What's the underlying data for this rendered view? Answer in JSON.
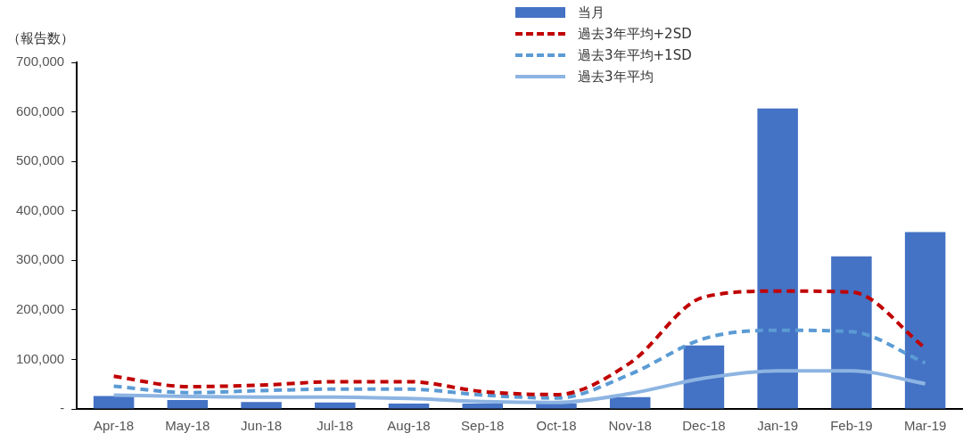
{
  "chart_data": {
    "type": "bar",
    "ylabel": "（報告数）",
    "categories": [
      "Apr-18",
      "May-18",
      "Jun-18",
      "Jul-18",
      "Aug-18",
      "Sep-18",
      "Oct-18",
      "Nov-18",
      "Dec-18",
      "Jan-19",
      "Feb-19",
      "Mar-19"
    ],
    "series": [
      {
        "name": "当月",
        "color": "#4472c4",
        "values": [
          26000,
          18000,
          14000,
          13000,
          11000,
          11000,
          11000,
          24000,
          128000,
          607000,
          308000,
          357000
        ]
      },
      {
        "name": "過去3年平均+2SD",
        "type": "line",
        "line_style": "dashed",
        "color": "#c00000",
        "values": [
          66000,
          45000,
          48000,
          55000,
          55000,
          35000,
          29000,
          93000,
          226000,
          238000,
          236000,
          123000
        ]
      },
      {
        "name": "過去3年平均+1SD",
        "type": "line",
        "line_style": "dashed",
        "color": "#5b9bd5",
        "values": [
          46000,
          33000,
          37000,
          40000,
          40000,
          28000,
          22000,
          70000,
          142000,
          159000,
          156000,
          93000
        ]
      },
      {
        "name": "過去3年平均",
        "type": "line",
        "line_style": "solid",
        "color": "#8db4e2",
        "values": [
          28000,
          25000,
          24000,
          24000,
          21000,
          15000,
          13000,
          31000,
          62000,
          77000,
          77000,
          51000
        ]
      }
    ],
    "ylim": [
      0,
      700000
    ],
    "yticks": [
      {
        "value": 0,
        "label": "-"
      },
      {
        "value": 100000,
        "label": "100,000"
      },
      {
        "value": 200000,
        "label": "200,000"
      },
      {
        "value": 300000,
        "label": "300,000"
      },
      {
        "value": 400000,
        "label": "400,000"
      },
      {
        "value": 500000,
        "label": "500,000"
      },
      {
        "value": 600000,
        "label": "600,000"
      },
      {
        "value": 700000,
        "label": "700,000"
      }
    ],
    "grid": false,
    "legend": "top",
    "marker": "none"
  }
}
